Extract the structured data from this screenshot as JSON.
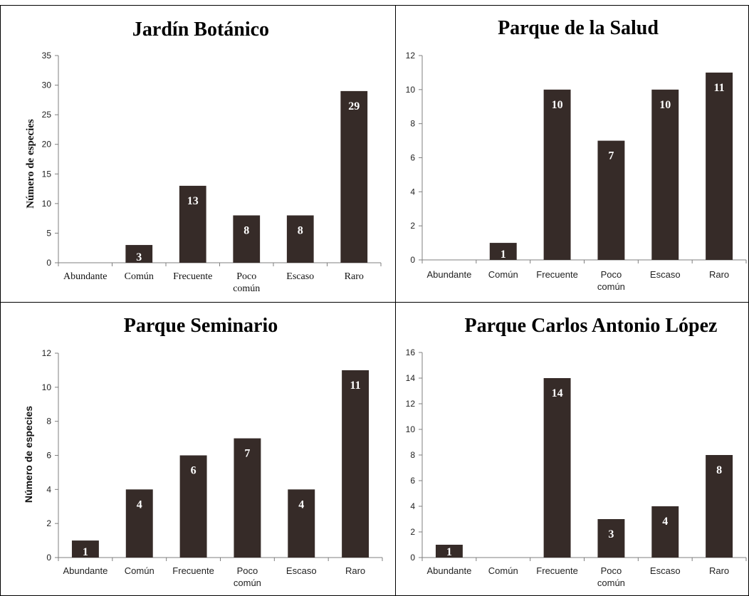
{
  "style": {
    "bar_color": "#362b28",
    "axis_color": "#7f7f7f",
    "frame_color": "#000000",
    "label_color": "#ffffff"
  },
  "chart_data": [
    {
      "type": "bar",
      "title": "Jardín Botánico",
      "ylabel": "Número de especies",
      "categories": [
        "Abundante",
        "Común",
        "Frecuente",
        "Poco común",
        "Escaso",
        "Raro"
      ],
      "values": [
        0,
        3,
        13,
        8,
        8,
        29
      ],
      "data_labels": [
        "",
        "3",
        "13",
        "8",
        "8",
        "29"
      ],
      "ylim": [
        0,
        35
      ],
      "yticks": [
        0,
        5,
        10,
        15,
        20,
        25,
        30,
        35
      ],
      "grid": false,
      "legend": "none"
    },
    {
      "type": "bar",
      "title": "Parque de la Salud",
      "ylabel": "",
      "categories": [
        "Abundante",
        "Común",
        "Frecuente",
        "Poco común",
        "Escaso",
        "Raro"
      ],
      "values": [
        0,
        1,
        10,
        7,
        10,
        11
      ],
      "data_labels": [
        "",
        "1",
        "10",
        "7",
        "10",
        "11"
      ],
      "ylim": [
        0,
        12
      ],
      "yticks": [
        0,
        2,
        4,
        6,
        8,
        10,
        12
      ],
      "grid": false,
      "legend": "none"
    },
    {
      "type": "bar",
      "title": "Parque Seminario",
      "ylabel": "Número de especies",
      "categories": [
        "Abundante",
        "Común",
        "Frecuente",
        "Poco común",
        "Escaso",
        "Raro"
      ],
      "values": [
        1,
        4,
        6,
        7,
        4,
        11
      ],
      "data_labels": [
        "1",
        "4",
        "6",
        "7",
        "4",
        "11"
      ],
      "ylim": [
        0,
        12
      ],
      "yticks": [
        0,
        2,
        4,
        6,
        8,
        10,
        12
      ],
      "grid": false,
      "legend": "none"
    },
    {
      "type": "bar",
      "title": "Parque Carlos Antonio López",
      "ylabel": "",
      "categories": [
        "Abundante",
        "Común",
        "Frecuente",
        "Poco común",
        "Escaso",
        "Raro"
      ],
      "values": [
        1,
        0,
        14,
        3,
        4,
        8
      ],
      "data_labels": [
        "1",
        "",
        "14",
        "3",
        "4",
        "8"
      ],
      "ylim": [
        0,
        16
      ],
      "yticks": [
        0,
        2,
        4,
        6,
        8,
        10,
        12,
        14,
        16
      ],
      "grid": false,
      "legend": "none"
    }
  ]
}
